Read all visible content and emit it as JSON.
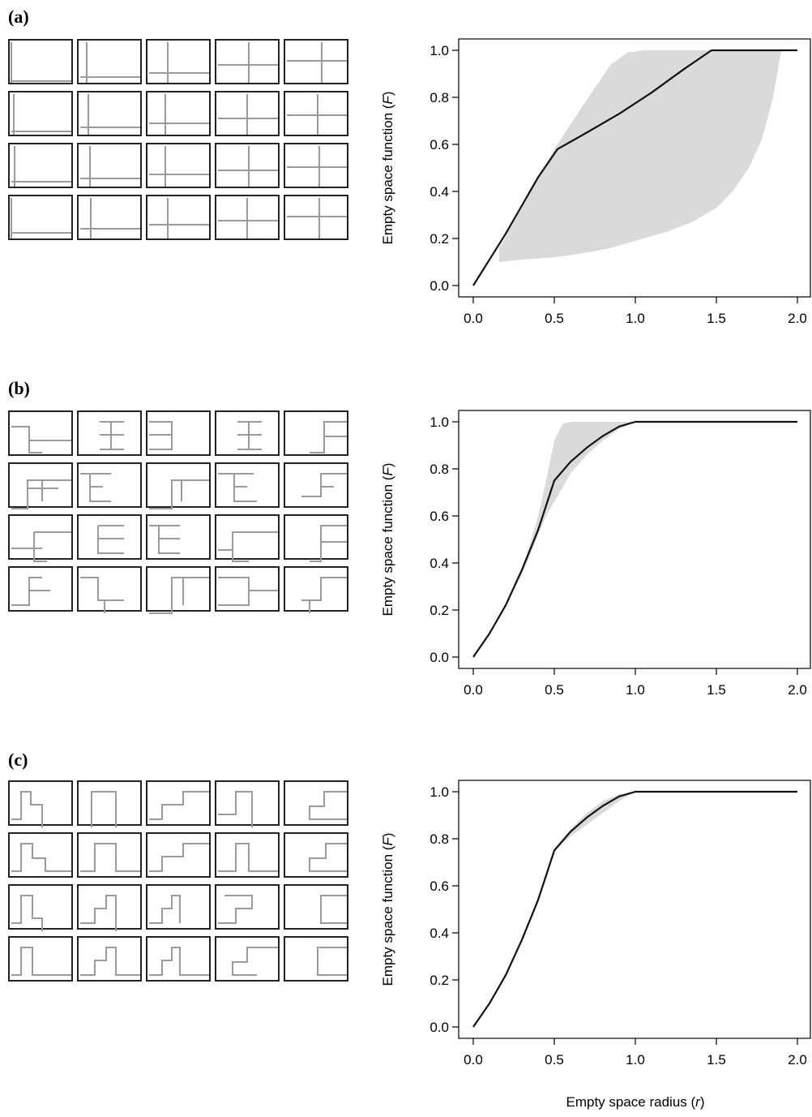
{
  "figure": {
    "panel_labels": [
      "(a)",
      "(b)",
      "(c)"
    ]
  },
  "colors": {
    "band": "#d9dadb",
    "curve": "#111111",
    "path": "#9a9a9a",
    "axis": "#000000"
  },
  "chart_data": [
    {
      "type": "line",
      "panel": "(a)",
      "title": "",
      "ylabel": "Empty space function (F)",
      "xlabel": "",
      "xlim": [
        0,
        2
      ],
      "ylim": [
        0,
        1
      ],
      "xticks": [
        "0.0",
        "0.5",
        "1.0",
        "1.5",
        "2.0"
      ],
      "yticks": [
        "0.0",
        "0.2",
        "0.4",
        "0.6",
        "0.8",
        "1.0"
      ],
      "grid": false,
      "series": [
        {
          "x": [
            0,
            0.1,
            0.2,
            0.3,
            0.4,
            0.52,
            0.7,
            0.9,
            1.1,
            1.3,
            1.47,
            1.7,
            2.0
          ],
          "y": [
            0,
            0.11,
            0.22,
            0.34,
            0.46,
            0.58,
            0.65,
            0.73,
            0.82,
            0.92,
            1.0,
            1.0,
            1.0
          ]
        }
      ],
      "band": {
        "x": [
          0.16,
          0.3,
          0.5,
          0.7,
          0.85,
          0.95,
          1.05,
          1.2,
          1.35,
          1.5,
          1.6,
          1.7,
          1.78,
          1.85,
          1.9
        ],
        "upper": [
          0.16,
          0.33,
          0.58,
          0.79,
          0.94,
          0.99,
          1.0,
          1.0,
          1.0,
          1.0,
          1.0,
          1.0,
          1.0,
          1.0,
          1.0
        ],
        "lower": [
          0.1,
          0.11,
          0.12,
          0.14,
          0.16,
          0.18,
          0.2,
          0.23,
          0.27,
          0.33,
          0.4,
          0.5,
          0.62,
          0.8,
          1.0
        ]
      }
    },
    {
      "type": "line",
      "panel": "(b)",
      "title": "",
      "ylabel": "Empty space function (F)",
      "xlabel": "",
      "xlim": [
        0,
        2
      ],
      "ylim": [
        0,
        1
      ],
      "xticks": [
        "0.0",
        "0.5",
        "1.0",
        "1.5",
        "2.0"
      ],
      "yticks": [
        "0.0",
        "0.2",
        "0.4",
        "0.6",
        "0.8",
        "1.0"
      ],
      "grid": false,
      "series": [
        {
          "x": [
            0,
            0.1,
            0.2,
            0.3,
            0.4,
            0.5,
            0.6,
            0.7,
            0.8,
            0.9,
            1.0,
            1.5,
            2.0
          ],
          "y": [
            0,
            0.1,
            0.22,
            0.37,
            0.54,
            0.75,
            0.83,
            0.89,
            0.94,
            0.98,
            1.0,
            1.0,
            1.0
          ]
        }
      ],
      "band": {
        "x": [
          0.25,
          0.3,
          0.35,
          0.4,
          0.45,
          0.5,
          0.55,
          0.6,
          0.7,
          0.8,
          0.9,
          1.0
        ],
        "upper": [
          0.31,
          0.38,
          0.48,
          0.6,
          0.75,
          0.92,
          0.99,
          1.0,
          1.0,
          1.0,
          1.0,
          1.0
        ],
        "lower": [
          0.29,
          0.35,
          0.43,
          0.52,
          0.6,
          0.66,
          0.72,
          0.78,
          0.86,
          0.92,
          0.97,
          1.0
        ]
      }
    },
    {
      "type": "line",
      "panel": "(c)",
      "title": "",
      "ylabel": "Empty space function (F)",
      "xlabel": "Empty space radius (r)",
      "xlim": [
        0,
        2
      ],
      "ylim": [
        0,
        1
      ],
      "xticks": [
        "0.0",
        "0.5",
        "1.0",
        "1.5",
        "2.0"
      ],
      "yticks": [
        "0.0",
        "0.2",
        "0.4",
        "0.6",
        "0.8",
        "1.0"
      ],
      "grid": false,
      "series": [
        {
          "x": [
            0,
            0.1,
            0.2,
            0.3,
            0.4,
            0.5,
            0.6,
            0.7,
            0.8,
            0.9,
            1.0,
            1.5,
            2.0
          ],
          "y": [
            0,
            0.1,
            0.22,
            0.37,
            0.54,
            0.75,
            0.83,
            0.89,
            0.94,
            0.98,
            1.0,
            1.0,
            1.0
          ]
        }
      ],
      "band": {
        "x": [
          0.5,
          0.6,
          0.7,
          0.8,
          0.9,
          1.0
        ],
        "upper": [
          0.76,
          0.84,
          0.91,
          0.96,
          0.99,
          1.0
        ],
        "lower": [
          0.75,
          0.81,
          0.86,
          0.91,
          0.96,
          1.0
        ]
      }
    }
  ]
}
